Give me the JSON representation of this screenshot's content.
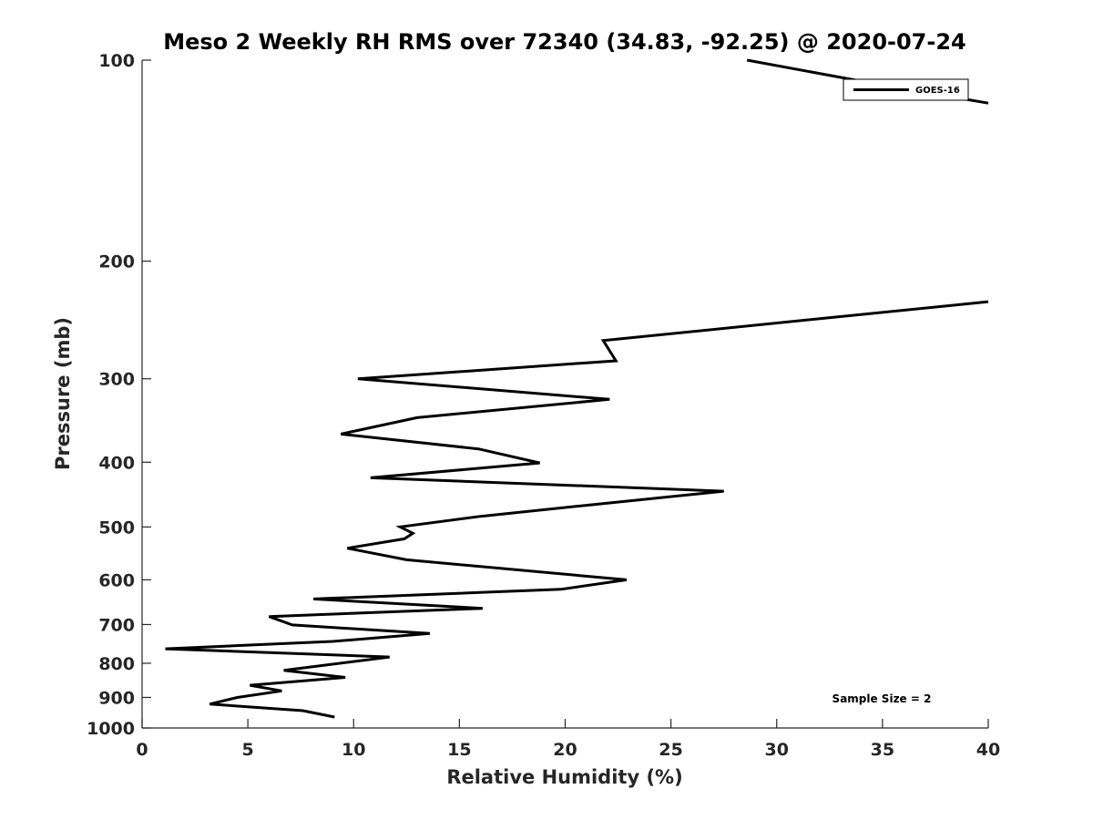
{
  "chart_data": {
    "type": "line",
    "title": "Meso 2 Weekly RH RMS over 72340 (34.83, -92.25) @ 2020-07-24",
    "xlabel": "Relative Humidity (%)",
    "ylabel": "Pressure (mb)",
    "xlim": [
      0,
      40
    ],
    "ylim": [
      100,
      1000
    ],
    "y_scale": "log",
    "y_reversed": true,
    "x_ticks": [
      0,
      5,
      10,
      15,
      20,
      25,
      30,
      35,
      40
    ],
    "y_ticks": [
      100,
      200,
      300,
      400,
      500,
      600,
      700,
      800,
      900,
      1000
    ],
    "grid": false,
    "legend_placement": "top-right",
    "series": [
      {
        "name": "GOES-16",
        "color": "#000000",
        "points": [
          [
            28.6,
            100
          ],
          [
            35.0,
            109
          ],
          [
            40.0,
            116
          ],
          [
            null,
            null
          ],
          [
            40.0,
            230
          ],
          [
            21.8,
            263
          ],
          [
            22.4,
            282
          ],
          [
            10.2,
            300
          ],
          [
            22.1,
            322
          ],
          [
            13.0,
            343
          ],
          [
            9.4,
            363
          ],
          [
            15.9,
            382
          ],
          [
            18.8,
            401
          ],
          [
            10.8,
            422
          ],
          [
            27.5,
            442
          ],
          [
            21.0,
            464
          ],
          [
            16.0,
            482
          ],
          [
            12.2,
            500
          ],
          [
            12.8,
            511
          ],
          [
            12.4,
            521
          ],
          [
            9.7,
            538
          ],
          [
            12.5,
            560
          ],
          [
            22.9,
            600
          ],
          [
            19.8,
            620
          ],
          [
            8.1,
            641
          ],
          [
            16.1,
            662
          ],
          [
            6.0,
            681
          ],
          [
            7.1,
            701
          ],
          [
            13.6,
            722
          ],
          [
            9.0,
            742
          ],
          [
            1.1,
            761
          ],
          [
            11.7,
            783
          ],
          [
            6.7,
            820
          ],
          [
            9.6,
            840
          ],
          [
            5.1,
            863
          ],
          [
            6.6,
            880
          ],
          [
            4.5,
            900
          ],
          [
            3.2,
            921
          ],
          [
            7.6,
            942
          ],
          [
            9.1,
            963
          ]
        ]
      }
    ],
    "annotations": [
      "Sample Size = 2"
    ]
  }
}
